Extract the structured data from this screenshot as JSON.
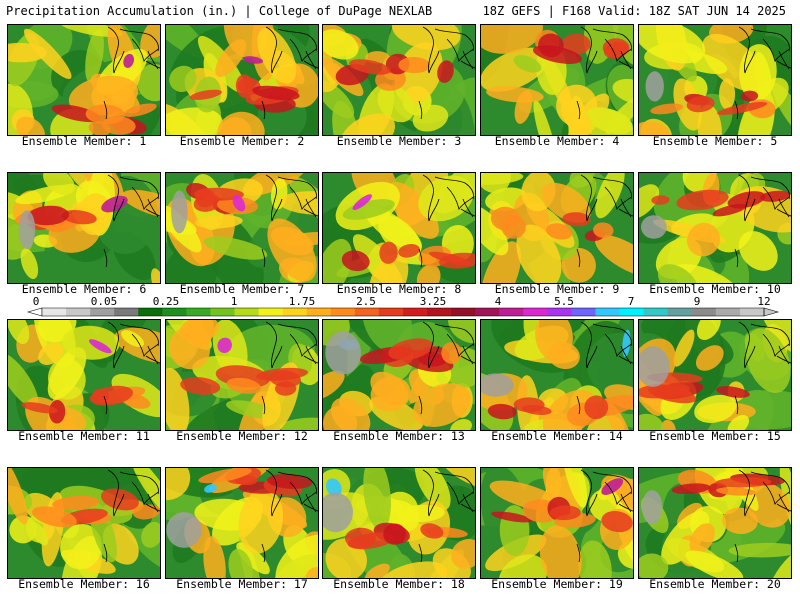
{
  "header": {
    "left_title": "Precipitation Accumulation (in.) | College of DuPage NEXLAB",
    "right_title": "18Z GEFS | F168 Valid: 18Z SAT JUN 14 2025"
  },
  "panels": [
    {
      "label": "Ensemble Member: 1"
    },
    {
      "label": "Ensemble Member: 2"
    },
    {
      "label": "Ensemble Member: 3"
    },
    {
      "label": "Ensemble Member: 4"
    },
    {
      "label": "Ensemble Member: 5"
    },
    {
      "label": "Ensemble Member: 6"
    },
    {
      "label": "Ensemble Member: 7"
    },
    {
      "label": "Ensemble Member: 8"
    },
    {
      "label": "Ensemble Member: 9"
    },
    {
      "label": "Ensemble Member: 10"
    },
    {
      "label": "Ensemble Member: 11"
    },
    {
      "label": "Ensemble Member: 12"
    },
    {
      "label": "Ensemble Member: 13"
    },
    {
      "label": "Ensemble Member: 14"
    },
    {
      "label": "Ensemble Member: 15"
    },
    {
      "label": "Ensemble Member: 16"
    },
    {
      "label": "Ensemble Member: 17"
    },
    {
      "label": "Ensemble Member: 18"
    },
    {
      "label": "Ensemble Member: 19"
    },
    {
      "label": "Ensemble Member: 20"
    }
  ],
  "colorbar": {
    "tick_labels": [
      "0",
      "0.05",
      "0.25",
      "1",
      "1.75",
      "2.5",
      "3.25",
      "4",
      "5.5",
      "7",
      "9",
      "12"
    ],
    "colors": [
      "#e6e6e6",
      "#c8c8c8",
      "#a0a0a0",
      "#7a7a7a",
      "#0a6e0a",
      "#1f8f1f",
      "#3aaa26",
      "#74c41e",
      "#b4dc19",
      "#f2f21a",
      "#ffd21e",
      "#ffae1e",
      "#ff8a1e",
      "#f5641e",
      "#e63c1e",
      "#d21e1e",
      "#b4141e",
      "#960f28",
      "#a0145a",
      "#be1e96",
      "#dc28d2",
      "#aa32f0",
      "#6e64ff",
      "#32c8ff",
      "#00f0ff",
      "#32c8c8",
      "#64a0a0",
      "#8c8c8c",
      "#aaaaaa",
      "#c8c8c8"
    ]
  }
}
